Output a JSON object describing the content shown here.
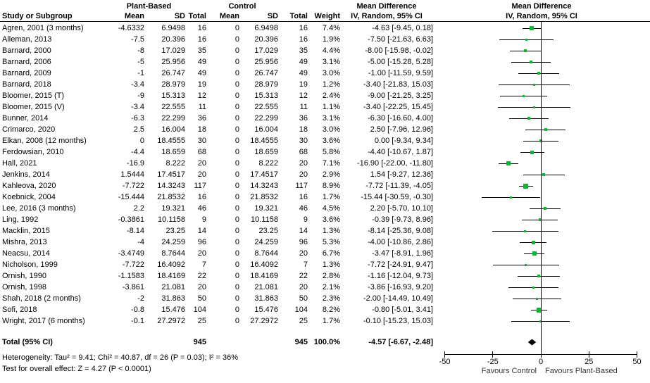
{
  "header": {
    "group1": "Plant-Based",
    "group2": "Control",
    "study": "Study or Subgroup",
    "mean": "Mean",
    "sd": "SD",
    "total": "Total",
    "weight": "Weight",
    "md_title": "Mean Difference",
    "md_subtitle": "IV, Random, 95% CI"
  },
  "footnotes": {
    "heterogeneity": "Heterogeneity: Tau² = 9.41; Chi² = 40.87, df = 26 (P = 0.03); I² = 36%",
    "overall_effect": "Test for overall effect: Z = 4.27 (P < 0.0001)"
  },
  "colors": {
    "marker_green": "#00bb2a",
    "diamond_black": "#000000",
    "line_black": "#000000"
  },
  "chart_data": {
    "type": "forest",
    "title": "Mean Difference",
    "effect_measure": "IV, Random, 95% CI",
    "xlim": [
      -50,
      50
    ],
    "axis_ticks": [
      -50,
      -25,
      0,
      25,
      50
    ],
    "favours_left": "Favours Control",
    "favours_right": "Favours Plant-Based",
    "studies": [
      {
        "name": "Agren, 2001 (3 months)",
        "pb_mean": "-4.6332",
        "pb_sd": "6.9498",
        "pb_total": "16",
        "c_mean": "0",
        "c_sd": "6.9498",
        "c_total": "16",
        "weight": "7.4%",
        "md_text": "-4.63 [-9.45, 0.18]",
        "md": -4.63,
        "lo": -9.45,
        "hi": 0.18
      },
      {
        "name": "Alleman, 2013",
        "pb_mean": "-7.5",
        "pb_sd": "20.396",
        "pb_total": "16",
        "c_mean": "0",
        "c_sd": "20.396",
        "c_total": "16",
        "weight": "1.9%",
        "md_text": "-7.50 [-21.63, 6.63]",
        "md": -7.5,
        "lo": -21.63,
        "hi": 6.63
      },
      {
        "name": "Barnard, 2000",
        "pb_mean": "-8",
        "pb_sd": "17.029",
        "pb_total": "35",
        "c_mean": "0",
        "c_sd": "17.029",
        "c_total": "35",
        "weight": "4.4%",
        "md_text": "-8.00 [-15.98, -0.02]",
        "md": -8,
        "lo": -15.98,
        "hi": -0.02
      },
      {
        "name": "Barnard, 2006",
        "pb_mean": "-5",
        "pb_sd": "25.956",
        "pb_total": "49",
        "c_mean": "0",
        "c_sd": "25.956",
        "c_total": "49",
        "weight": "3.1%",
        "md_text": "-5.00 [-15.28, 5.28]",
        "md": -5,
        "lo": -15.28,
        "hi": 5.28
      },
      {
        "name": "Barnard, 2009",
        "pb_mean": "-1",
        "pb_sd": "26.747",
        "pb_total": "49",
        "c_mean": "0",
        "c_sd": "26.747",
        "c_total": "49",
        "weight": "3.0%",
        "md_text": "-1.00 [-11.59, 9.59]",
        "md": -1,
        "lo": -11.59,
        "hi": 9.59
      },
      {
        "name": "Barnard, 2018",
        "pb_mean": "-3.4",
        "pb_sd": "28.979",
        "pb_total": "19",
        "c_mean": "0",
        "c_sd": "28.979",
        "c_total": "19",
        "weight": "1.2%",
        "md_text": "-3.40 [-21.83, 15.03]",
        "md": -3.4,
        "lo": -21.83,
        "hi": 15.03
      },
      {
        "name": "Bloomer, 2015 (T)",
        "pb_mean": "-9",
        "pb_sd": "15.313",
        "pb_total": "12",
        "c_mean": "0",
        "c_sd": "15.313",
        "c_total": "12",
        "weight": "2.4%",
        "md_text": "-9.00 [-21.25, 3.25]",
        "md": -9,
        "lo": -21.25,
        "hi": 3.25
      },
      {
        "name": "Bloomer, 2015 (V)",
        "pb_mean": "-3.4",
        "pb_sd": "22.555",
        "pb_total": "11",
        "c_mean": "0",
        "c_sd": "22.555",
        "c_total": "11",
        "weight": "1.1%",
        "md_text": "-3.40 [-22.25, 15.45]",
        "md": -3.4,
        "lo": -22.25,
        "hi": 15.45
      },
      {
        "name": "Bunner, 2014",
        "pb_mean": "-6.3",
        "pb_sd": "22.299",
        "pb_total": "36",
        "c_mean": "0",
        "c_sd": "22.299",
        "c_total": "36",
        "weight": "3.1%",
        "md_text": "-6.30 [-16.60, 4.00]",
        "md": -6.3,
        "lo": -16.6,
        "hi": 4
      },
      {
        "name": "Crimarco, 2020",
        "pb_mean": "2.5",
        "pb_sd": "16.004",
        "pb_total": "18",
        "c_mean": "0",
        "c_sd": "16.004",
        "c_total": "18",
        "weight": "3.0%",
        "md_text": "2.50 [-7.96, 12.96]",
        "md": 2.5,
        "lo": -7.96,
        "hi": 12.96
      },
      {
        "name": "Elkan, 2008 (12 months)",
        "pb_mean": "0",
        "pb_sd": "18.4555",
        "pb_total": "30",
        "c_mean": "0",
        "c_sd": "18.4555",
        "c_total": "30",
        "weight": "3.6%",
        "md_text": "0.00 [-9.34, 9.34]",
        "md": 0,
        "lo": -9.34,
        "hi": 9.34
      },
      {
        "name": "Ferdowsian, 2010",
        "pb_mean": "-4.4",
        "pb_sd": "18.659",
        "pb_total": "68",
        "c_mean": "0",
        "c_sd": "18.659",
        "c_total": "68",
        "weight": "5.8%",
        "md_text": "-4.40 [-10.67, 1.87]",
        "md": -4.4,
        "lo": -10.67,
        "hi": 1.87
      },
      {
        "name": "Hall, 2021",
        "pb_mean": "-16.9",
        "pb_sd": "8.222",
        "pb_total": "20",
        "c_mean": "0",
        "c_sd": "8.222",
        "c_total": "20",
        "weight": "7.1%",
        "md_text": "-16.90 [-22.00, -11.80]",
        "md": -16.9,
        "lo": -22,
        "hi": -11.8
      },
      {
        "name": "Jenkins, 2014",
        "pb_mean": "1.5444",
        "pb_sd": "17.4517",
        "pb_total": "20",
        "c_mean": "0",
        "c_sd": "17.4517",
        "c_total": "20",
        "weight": "2.9%",
        "md_text": "1.54 [-9.27, 12.36]",
        "md": 1.54,
        "lo": -9.27,
        "hi": 12.36
      },
      {
        "name": "Kahleova, 2020",
        "pb_mean": "-7.722",
        "pb_sd": "14.3243",
        "pb_total": "117",
        "c_mean": "0",
        "c_sd": "14.3243",
        "c_total": "117",
        "weight": "8.9%",
        "md_text": "-7.72 [-11.39, -4.05]",
        "md": -7.72,
        "lo": -11.39,
        "hi": -4.05
      },
      {
        "name": "Koebnick, 2004",
        "pb_mean": "-15.444",
        "pb_sd": "21.8532",
        "pb_total": "16",
        "c_mean": "0",
        "c_sd": "21.8532",
        "c_total": "16",
        "weight": "1.7%",
        "md_text": "-15.44 [-30.59, -0.30]",
        "md": -15.44,
        "lo": -30.59,
        "hi": -0.3
      },
      {
        "name": "Lee, 2016 (3 months)",
        "pb_mean": "2.2",
        "pb_sd": "19.321",
        "pb_total": "46",
        "c_mean": "0",
        "c_sd": "19.321",
        "c_total": "46",
        "weight": "4.5%",
        "md_text": "2.20 [-5.70, 10.10]",
        "md": 2.2,
        "lo": -5.7,
        "hi": 10.1
      },
      {
        "name": "Ling, 1992",
        "pb_mean": "-0.3861",
        "pb_sd": "10.1158",
        "pb_total": "9",
        "c_mean": "0",
        "c_sd": "10.1158",
        "c_total": "9",
        "weight": "3.6%",
        "md_text": "-0.39 [-9.73, 8.96]",
        "md": -0.39,
        "lo": -9.73,
        "hi": 8.96
      },
      {
        "name": "Macklin, 2015",
        "pb_mean": "-8.14",
        "pb_sd": "23.25",
        "pb_total": "14",
        "c_mean": "0",
        "c_sd": "23.25",
        "c_total": "14",
        "weight": "1.3%",
        "md_text": "-8.14 [-25.36, 9.08]",
        "md": -8.14,
        "lo": -25.36,
        "hi": 9.08
      },
      {
        "name": "Mishra, 2013",
        "pb_mean": "-4",
        "pb_sd": "24.259",
        "pb_total": "96",
        "c_mean": "0",
        "c_sd": "24.259",
        "c_total": "96",
        "weight": "5.3%",
        "md_text": "-4.00 [-10.86, 2.86]",
        "md": -4,
        "lo": -10.86,
        "hi": 2.86
      },
      {
        "name": "Neacsu, 2014",
        "pb_mean": "-3.4749",
        "pb_sd": "8.7644",
        "pb_total": "20",
        "c_mean": "0",
        "c_sd": "8.7644",
        "c_total": "20",
        "weight": "6.7%",
        "md_text": "-3.47 [-8.91, 1.96]",
        "md": -3.47,
        "lo": -8.91,
        "hi": 1.96
      },
      {
        "name": "Nicholson, 1999",
        "pb_mean": "-7.722",
        "pb_sd": "16.4092",
        "pb_total": "7",
        "c_mean": "0",
        "c_sd": "16.4092",
        "c_total": "7",
        "weight": "1.3%",
        "md_text": "-7.72 [-24.91, 9.47]",
        "md": -7.72,
        "lo": -24.91,
        "hi": 9.47
      },
      {
        "name": "Ornish, 1990",
        "pb_mean": "-1.1583",
        "pb_sd": "18.4169",
        "pb_total": "22",
        "c_mean": "0",
        "c_sd": "18.4169",
        "c_total": "22",
        "weight": "2.8%",
        "md_text": "-1.16 [-12.04, 9.73]",
        "md": -1.16,
        "lo": -12.04,
        "hi": 9.73
      },
      {
        "name": "Ornish, 1998",
        "pb_mean": "-3.861",
        "pb_sd": "21.081",
        "pb_total": "20",
        "c_mean": "0",
        "c_sd": "21.081",
        "c_total": "20",
        "weight": "2.1%",
        "md_text": "-3.86 [-16.93, 9.20]",
        "md": -3.86,
        "lo": -16.93,
        "hi": 9.2
      },
      {
        "name": "Shah, 2018 (2 months)",
        "pb_mean": "-2",
        "pb_sd": "31.863",
        "pb_total": "50",
        "c_mean": "0",
        "c_sd": "31.863",
        "c_total": "50",
        "weight": "2.3%",
        "md_text": "-2.00 [-14.49, 10.49]",
        "md": -2,
        "lo": -14.49,
        "hi": 10.49
      },
      {
        "name": "Sofi, 2018",
        "pb_mean": "-0.8",
        "pb_sd": "15.476",
        "pb_total": "104",
        "c_mean": "0",
        "c_sd": "15.476",
        "c_total": "104",
        "weight": "8.2%",
        "md_text": "-0.80 [-5.01, 3.41]",
        "md": -0.8,
        "lo": -5.01,
        "hi": 3.41
      },
      {
        "name": "Wright, 2017 (6 months)",
        "pb_mean": "-0.1",
        "pb_sd": "27.2972",
        "pb_total": "25",
        "c_mean": "0",
        "c_sd": "27.2972",
        "c_total": "25",
        "weight": "1.7%",
        "md_text": "-0.10 [-15.23, 15.03]",
        "md": -0.1,
        "lo": -15.23,
        "hi": 15.03
      }
    ],
    "total": {
      "label": "Total (95% CI)",
      "pb_total": "945",
      "c_total": "945",
      "weight": "100.0%",
      "md_text": "-4.57 [-6.67, -2.48]",
      "md": -4.57,
      "lo": -6.67,
      "hi": -2.48
    }
  }
}
